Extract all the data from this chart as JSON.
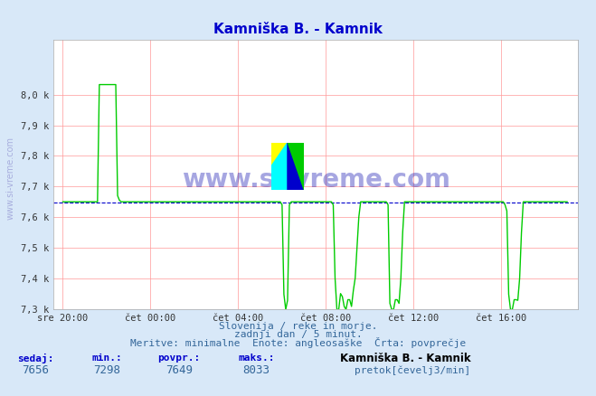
{
  "title": "Kamniška B. - Kamnik",
  "bg_color": "#d8e8f8",
  "plot_bg_color": "#ffffff",
  "grid_color_h": "#ff9999",
  "grid_color_v": "#ff9999",
  "line_color": "#00cc00",
  "avg_line_color": "#0000cc",
  "avg_value": 7649,
  "y_min": 7300,
  "y_max": 8100,
  "y_ticks": [
    7300,
    7400,
    7500,
    7600,
    7700,
    7800,
    7900,
    8000
  ],
  "y_tick_labels": [
    "7,3 k",
    "7,4 k",
    "7,5 k",
    "7,6 k",
    "7,7 k",
    "7,8 k",
    "7,9 k",
    "8,0 k"
  ],
  "x_tick_labels": [
    "sre 20:00",
    "čet 00:00",
    "čet 04:00",
    "čet 08:00",
    "čet 12:00",
    "čet 16:00"
  ],
  "footer_line1": "Slovenija / reke in morje.",
  "footer_line2": "zadnji dan / 5 minut.",
  "footer_line3": "Meritve: minimalne  Enote: angleosaške  Črta: povprečje",
  "stat_labels": [
    "sedaj:",
    "min.:",
    "povpr.:",
    "maks.:"
  ],
  "stat_values": [
    "7656",
    "7298",
    "7649",
    "8033"
  ],
  "legend_title": "Kamniška B. - Kamnik",
  "legend_label": "pretok[čevelj3/min]",
  "watermark": "www.si-vreme.com",
  "sidebar_text": "www.si-vreme.com"
}
